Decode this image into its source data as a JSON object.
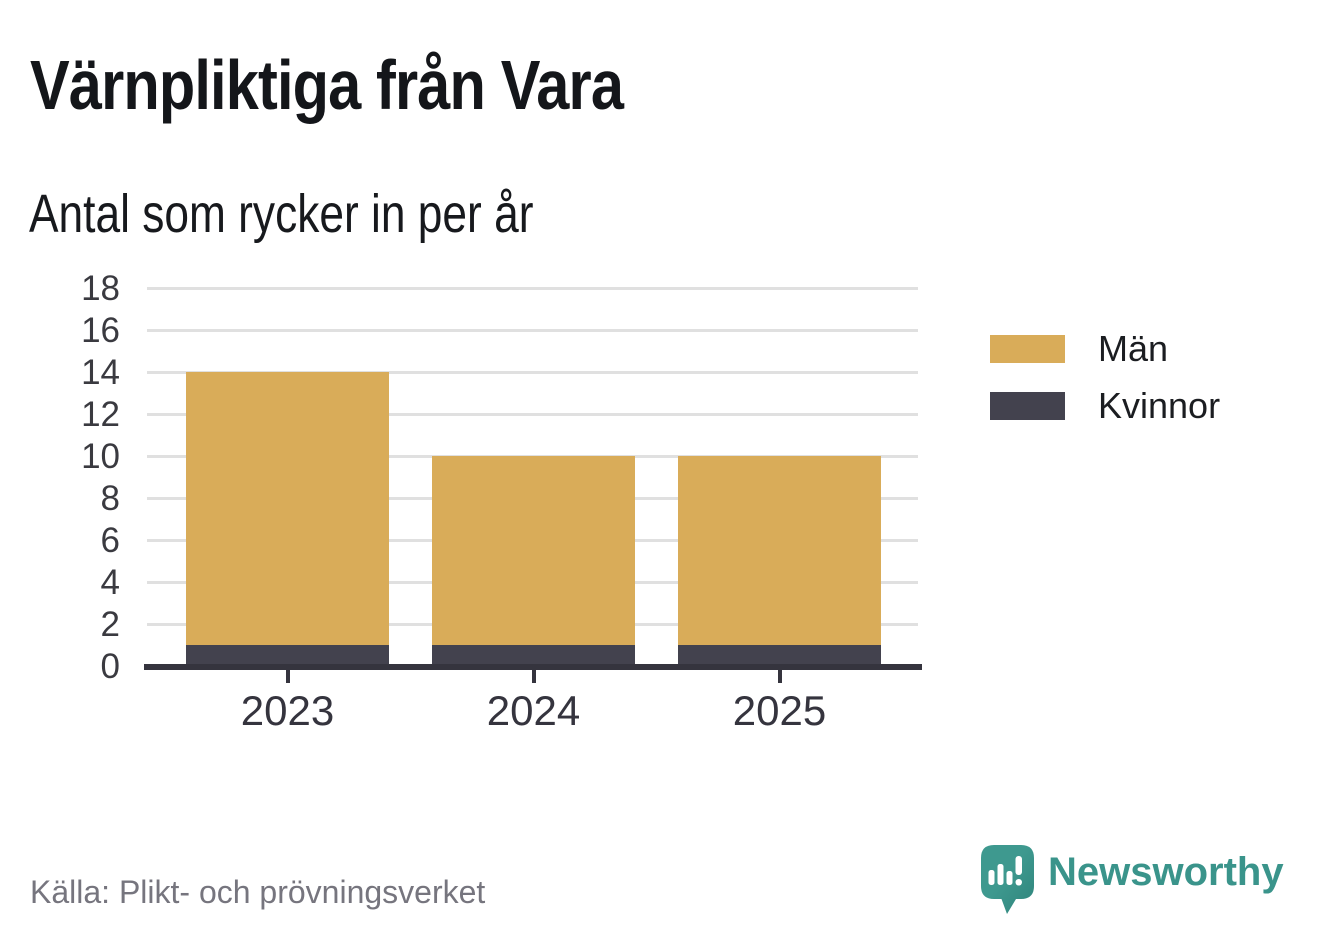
{
  "title": "Värnpliktiga från Vara",
  "subtitle": "Antal som rycker in per år",
  "source": "Källa: Plikt- och prövningsverket",
  "brand": {
    "name": "Newsworthy",
    "icon": "speech-bubble-bar-chart-icon",
    "color": "#3a948b"
  },
  "colors": {
    "men": "#d9ac59",
    "women": "#43424e",
    "grid": "#e0e0e0",
    "axis": "#35343e",
    "title_text": "#14161a",
    "muted_text": "#76757e"
  },
  "legend": {
    "items": [
      {
        "label": "Män",
        "color": "#d9ac59"
      },
      {
        "label": "Kvinnor",
        "color": "#43424e"
      }
    ]
  },
  "chart_data": {
    "type": "bar",
    "stacked": true,
    "title": "Värnpliktiga från Vara",
    "subtitle": "Antal som rycker in per år",
    "source": "Källa: Plikt- och prövningsverket",
    "categories": [
      "2023",
      "2024",
      "2025"
    ],
    "series": [
      {
        "name": "Män",
        "color": "#d9ac59",
        "values": [
          13,
          9,
          9
        ]
      },
      {
        "name": "Kvinnor",
        "color": "#43424e",
        "values": [
          1,
          1,
          1
        ]
      }
    ],
    "stack_order_bottom_to_top": [
      "Kvinnor",
      "Män"
    ],
    "stacked_totals": [
      14,
      10,
      10
    ],
    "xlabel": "",
    "ylabel": "",
    "ylim": [
      0,
      18
    ],
    "yticks": [
      0,
      2,
      4,
      6,
      8,
      10,
      12,
      14,
      16,
      18
    ],
    "grid": true,
    "legend_position": "right"
  }
}
